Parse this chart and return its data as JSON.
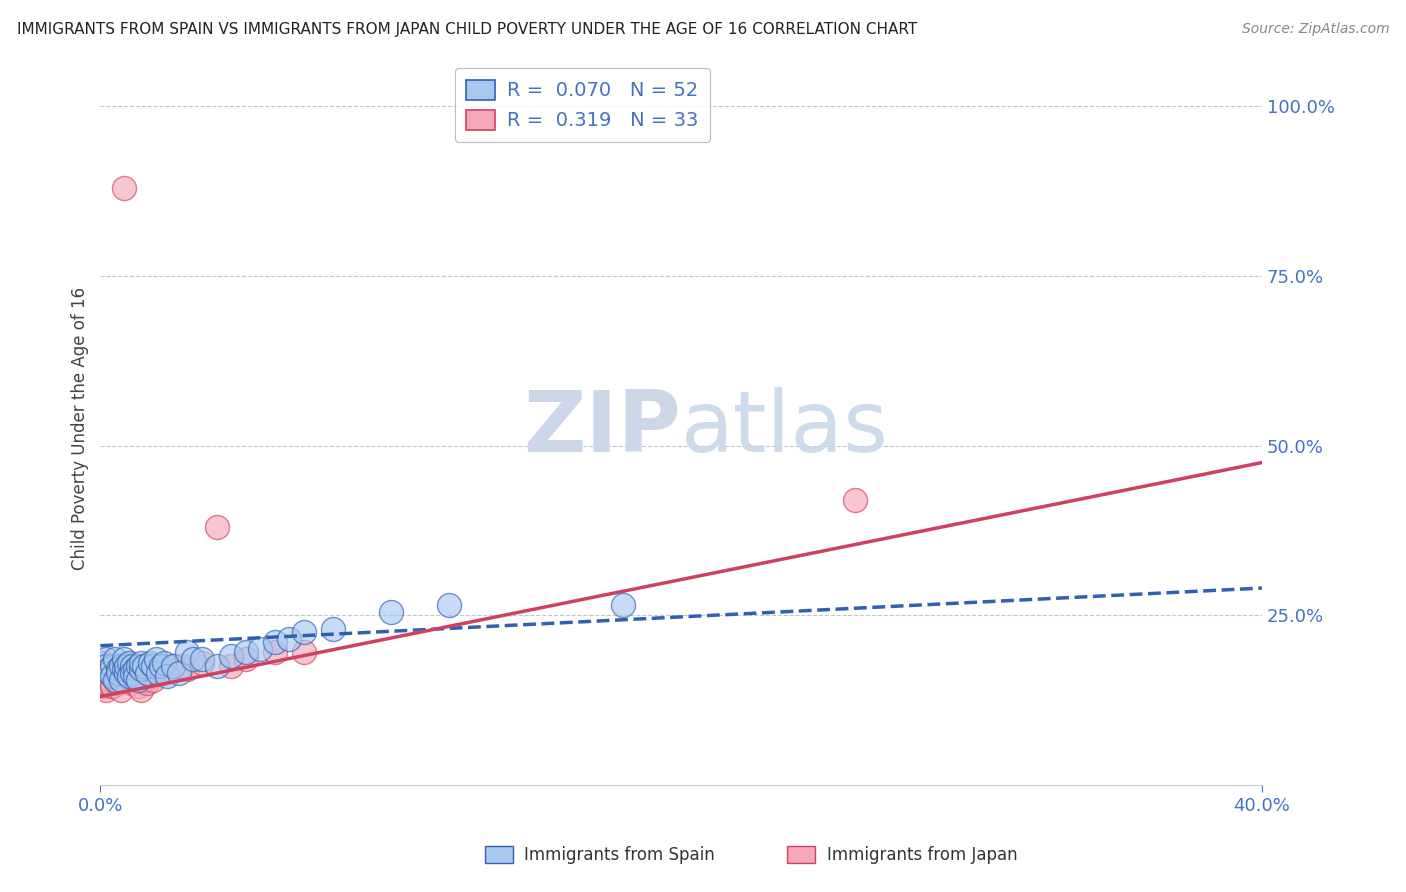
{
  "title": "IMMIGRANTS FROM SPAIN VS IMMIGRANTS FROM JAPAN CHILD POVERTY UNDER THE AGE OF 16 CORRELATION CHART",
  "source": "Source: ZipAtlas.com",
  "ylabel": "Child Poverty Under the Age of 16",
  "xlim": [
    0.0,
    0.4
  ],
  "ylim": [
    0.0,
    1.05
  ],
  "spain_R": 0.07,
  "spain_N": 52,
  "japan_R": 0.319,
  "japan_N": 33,
  "spain_color": "#a8c8f0",
  "japan_color": "#f5a8b8",
  "spain_line_color": "#3060b0",
  "japan_line_color": "#d04060",
  "watermark_color": "#ccd8e8",
  "background_color": "#ffffff",
  "grid_color": "#b8c8d8",
  "spain_scatter_x": [
    0.001,
    0.002,
    0.002,
    0.003,
    0.003,
    0.004,
    0.004,
    0.005,
    0.005,
    0.006,
    0.006,
    0.007,
    0.007,
    0.008,
    0.008,
    0.009,
    0.009,
    0.01,
    0.01,
    0.011,
    0.011,
    0.012,
    0.012,
    0.013,
    0.013,
    0.014,
    0.014,
    0.015,
    0.016,
    0.017,
    0.018,
    0.019,
    0.02,
    0.021,
    0.022,
    0.023,
    0.025,
    0.027,
    0.03,
    0.032,
    0.035,
    0.04,
    0.045,
    0.05,
    0.055,
    0.06,
    0.065,
    0.07,
    0.08,
    0.1,
    0.12,
    0.18
  ],
  "spain_scatter_y": [
    0.18,
    0.185,
    0.175,
    0.17,
    0.165,
    0.175,
    0.16,
    0.185,
    0.155,
    0.17,
    0.165,
    0.175,
    0.155,
    0.17,
    0.185,
    0.165,
    0.175,
    0.18,
    0.16,
    0.175,
    0.165,
    0.17,
    0.16,
    0.175,
    0.155,
    0.17,
    0.18,
    0.175,
    0.165,
    0.18,
    0.175,
    0.185,
    0.165,
    0.175,
    0.18,
    0.16,
    0.175,
    0.165,
    0.195,
    0.185,
    0.185,
    0.175,
    0.19,
    0.195,
    0.2,
    0.21,
    0.215,
    0.225,
    0.23,
    0.255,
    0.265,
    0.265
  ],
  "japan_scatter_x": [
    0.001,
    0.002,
    0.002,
    0.003,
    0.004,
    0.004,
    0.005,
    0.006,
    0.007,
    0.008,
    0.009,
    0.01,
    0.011,
    0.012,
    0.013,
    0.014,
    0.015,
    0.016,
    0.017,
    0.018,
    0.02,
    0.022,
    0.025,
    0.028,
    0.03,
    0.035,
    0.04,
    0.045,
    0.05,
    0.06,
    0.07,
    0.26,
    0.008
  ],
  "japan_scatter_y": [
    0.145,
    0.14,
    0.15,
    0.155,
    0.145,
    0.145,
    0.155,
    0.15,
    0.14,
    0.165,
    0.155,
    0.16,
    0.15,
    0.155,
    0.145,
    0.14,
    0.155,
    0.15,
    0.16,
    0.155,
    0.165,
    0.165,
    0.175,
    0.175,
    0.17,
    0.18,
    0.38,
    0.175,
    0.185,
    0.195,
    0.195,
    0.42,
    0.88
  ],
  "spain_line_x0": 0.0,
  "spain_line_y0": 0.205,
  "spain_line_x1": 0.4,
  "spain_line_y1": 0.29,
  "japan_line_x0": 0.0,
  "japan_line_y0": 0.13,
  "japan_line_x1": 0.4,
  "japan_line_y1": 0.475
}
